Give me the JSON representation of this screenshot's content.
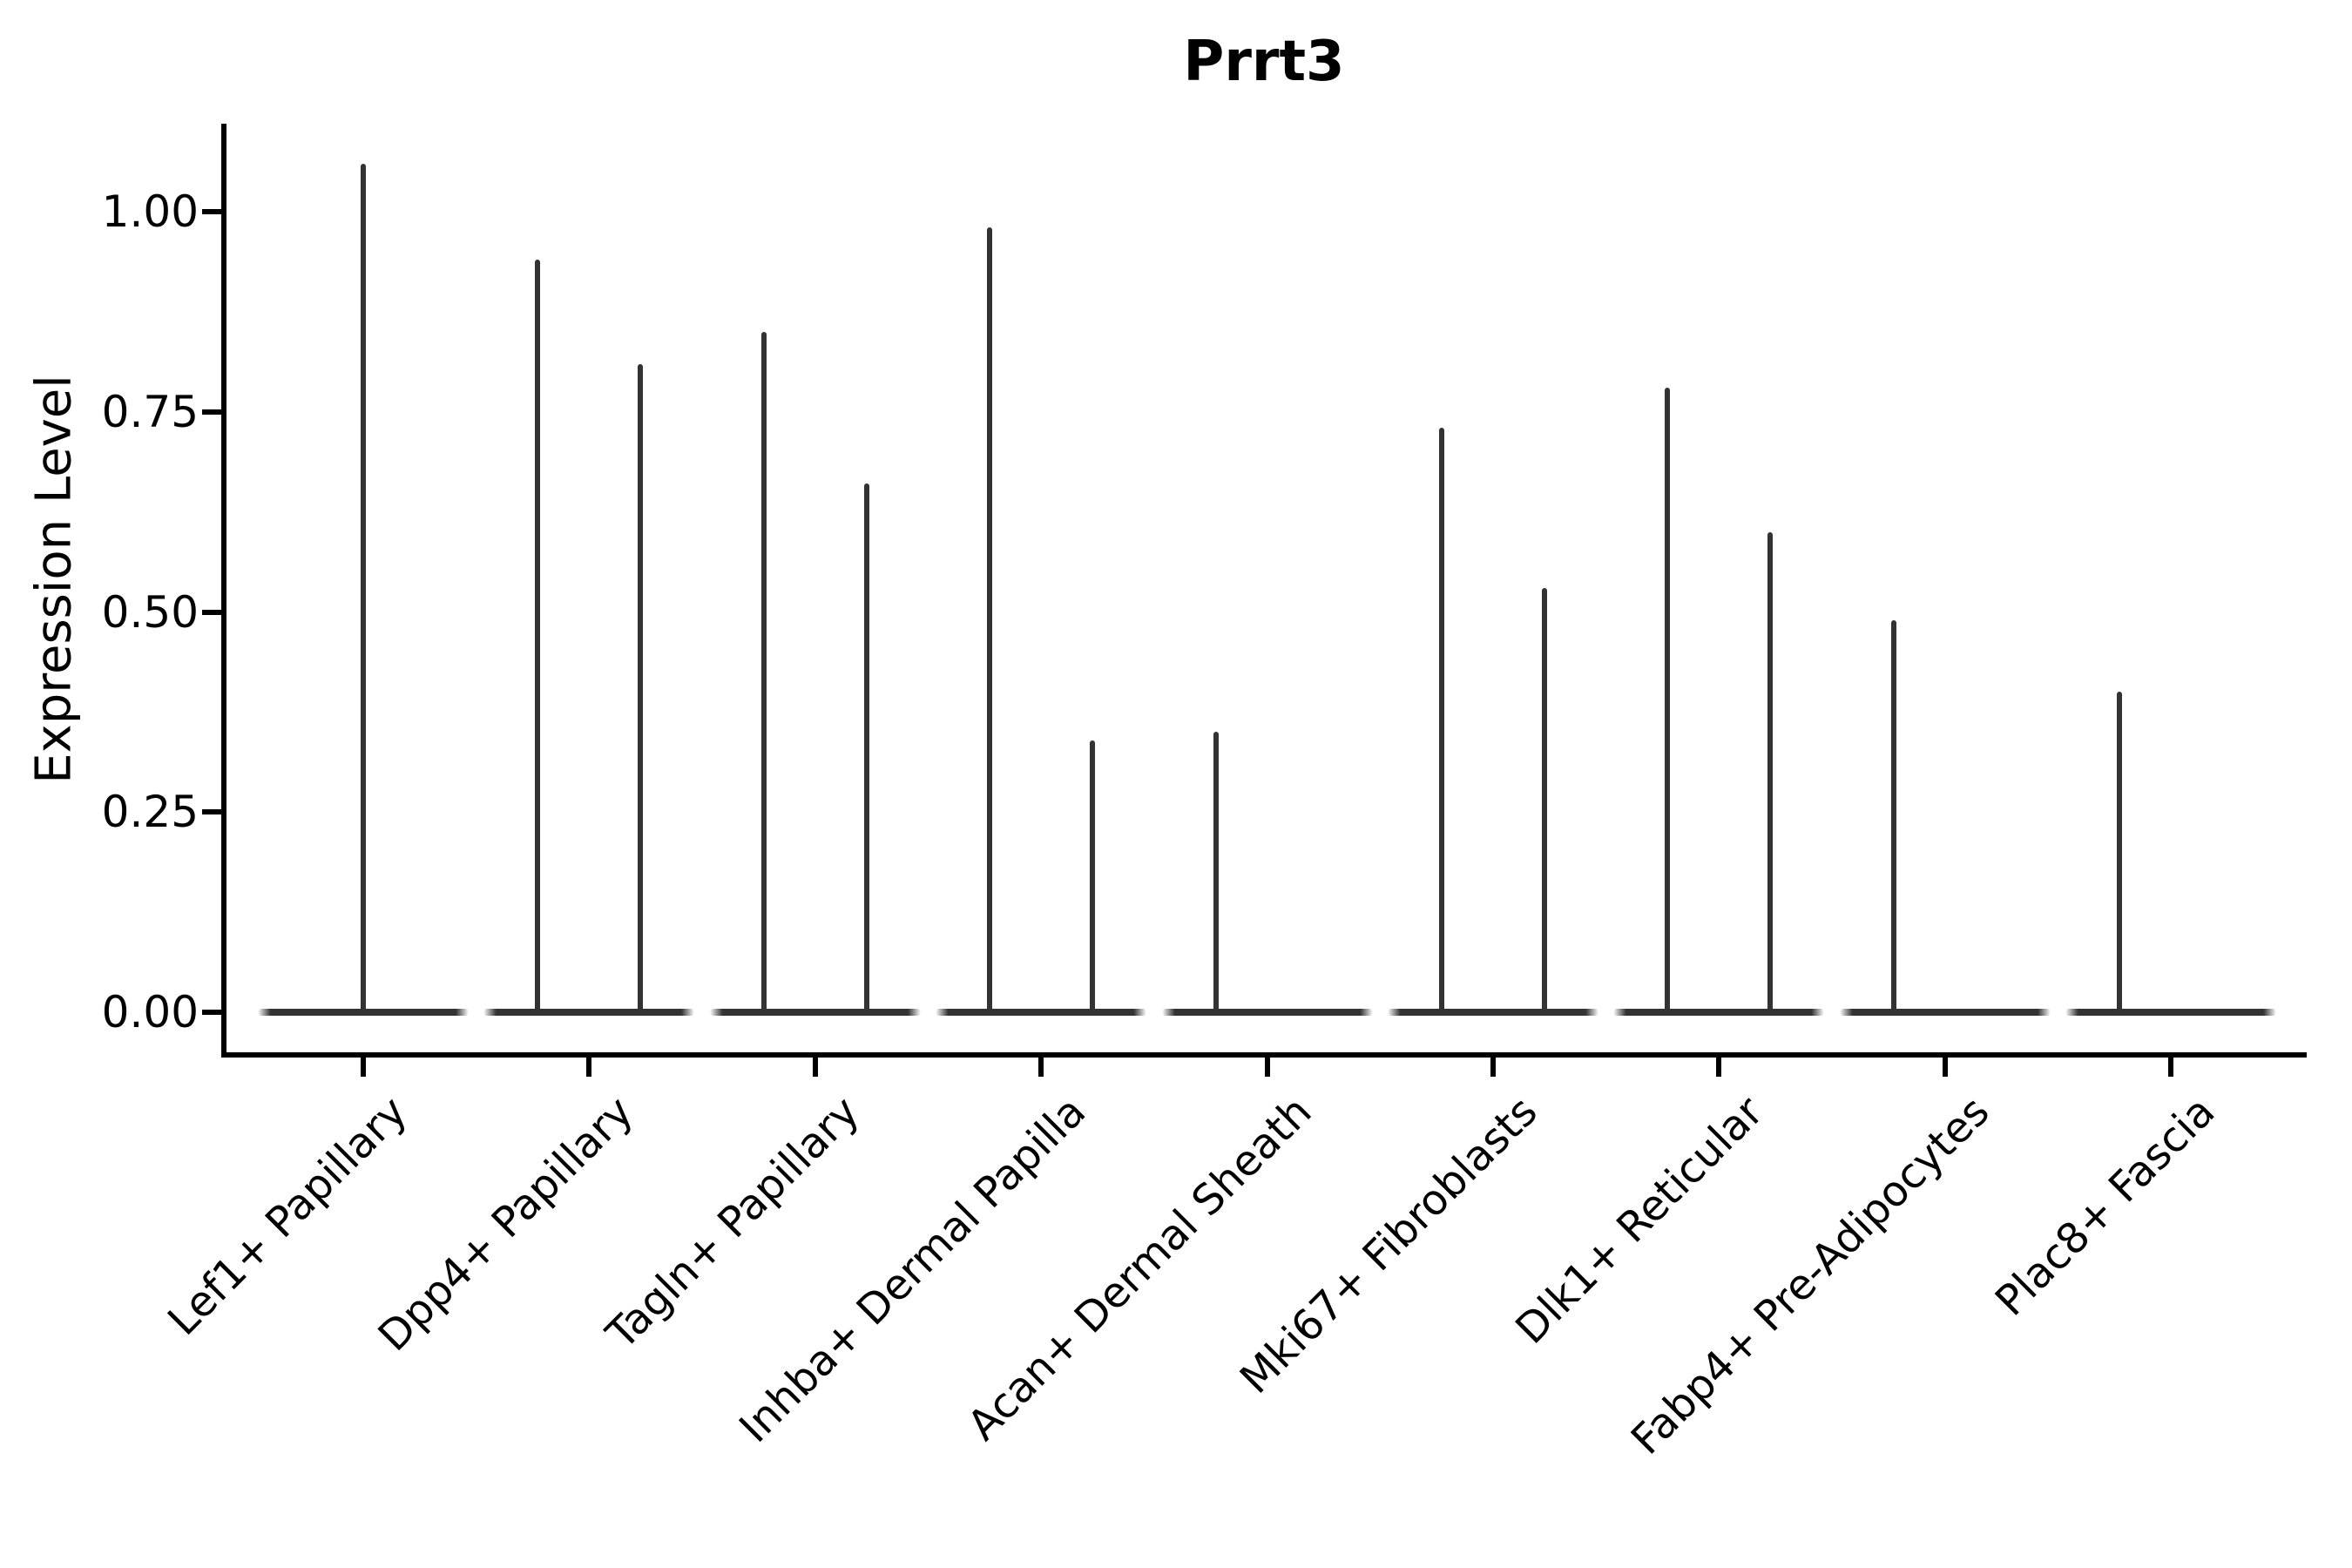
{
  "colors": {
    "line": "#333333",
    "axis": "#000000",
    "background": "#ffffff",
    "text": "#000000"
  },
  "chart_data": {
    "type": "violin",
    "title": "Prrt3",
    "xlabel": "",
    "ylabel": "Expression Level",
    "ylim": [
      0,
      1.11
    ],
    "grid": false,
    "legend": "none",
    "ytick_values": [
      0,
      0.25,
      0.5,
      0.75,
      1.0
    ],
    "ytick_labels": [
      "0.00",
      "0.25",
      "0.50",
      "0.75",
      "1.00"
    ],
    "categories": [
      "Lef1+ Papillary",
      "Dpp4+ Papillary",
      "Tagln+ Papillary",
      "Inhba+ Dermal Papilla",
      "Acan+ Dermal Sheath",
      "Mki67+ Fibroblasts",
      "Dlk1+ Reticular",
      "Fabp4+ Pre-Adipocytes",
      "Plac8+ Fascia"
    ],
    "description": "Each category shows violin(s) flattened at expression 0 with a thin vertical tail reaching the max expression value; dodged pairs where two tails are visible.",
    "violins": [
      {
        "category": "Lef1+ Papillary",
        "spikes": [
          {
            "position": "center",
            "max": 1.06
          }
        ]
      },
      {
        "category": "Dpp4+ Papillary",
        "spikes": [
          {
            "position": "left",
            "max": 0.94
          },
          {
            "position": "right",
            "max": 0.81
          }
        ]
      },
      {
        "category": "Tagln+ Papillary",
        "spikes": [
          {
            "position": "left",
            "max": 0.85
          },
          {
            "position": "right",
            "max": 0.66
          }
        ]
      },
      {
        "category": "Inhba+ Dermal Papilla",
        "spikes": [
          {
            "position": "left",
            "max": 0.98
          },
          {
            "position": "right",
            "max": 0.34
          }
        ]
      },
      {
        "category": "Acan+ Dermal Sheath",
        "spikes": [
          {
            "position": "left",
            "max": 0.35
          }
        ]
      },
      {
        "category": "Mki67+ Fibroblasts",
        "spikes": [
          {
            "position": "left",
            "max": 0.73
          },
          {
            "position": "right",
            "max": 0.53
          }
        ]
      },
      {
        "category": "Dlk1+ Reticular",
        "spikes": [
          {
            "position": "left",
            "max": 0.78
          },
          {
            "position": "right",
            "max": 0.6
          }
        ]
      },
      {
        "category": "Fabp4+ Pre-Adipocytes",
        "spikes": [
          {
            "position": "left",
            "max": 0.49
          }
        ]
      },
      {
        "category": "Plac8+ Fascia",
        "spikes": [
          {
            "position": "left",
            "max": 0.4
          }
        ]
      }
    ]
  }
}
